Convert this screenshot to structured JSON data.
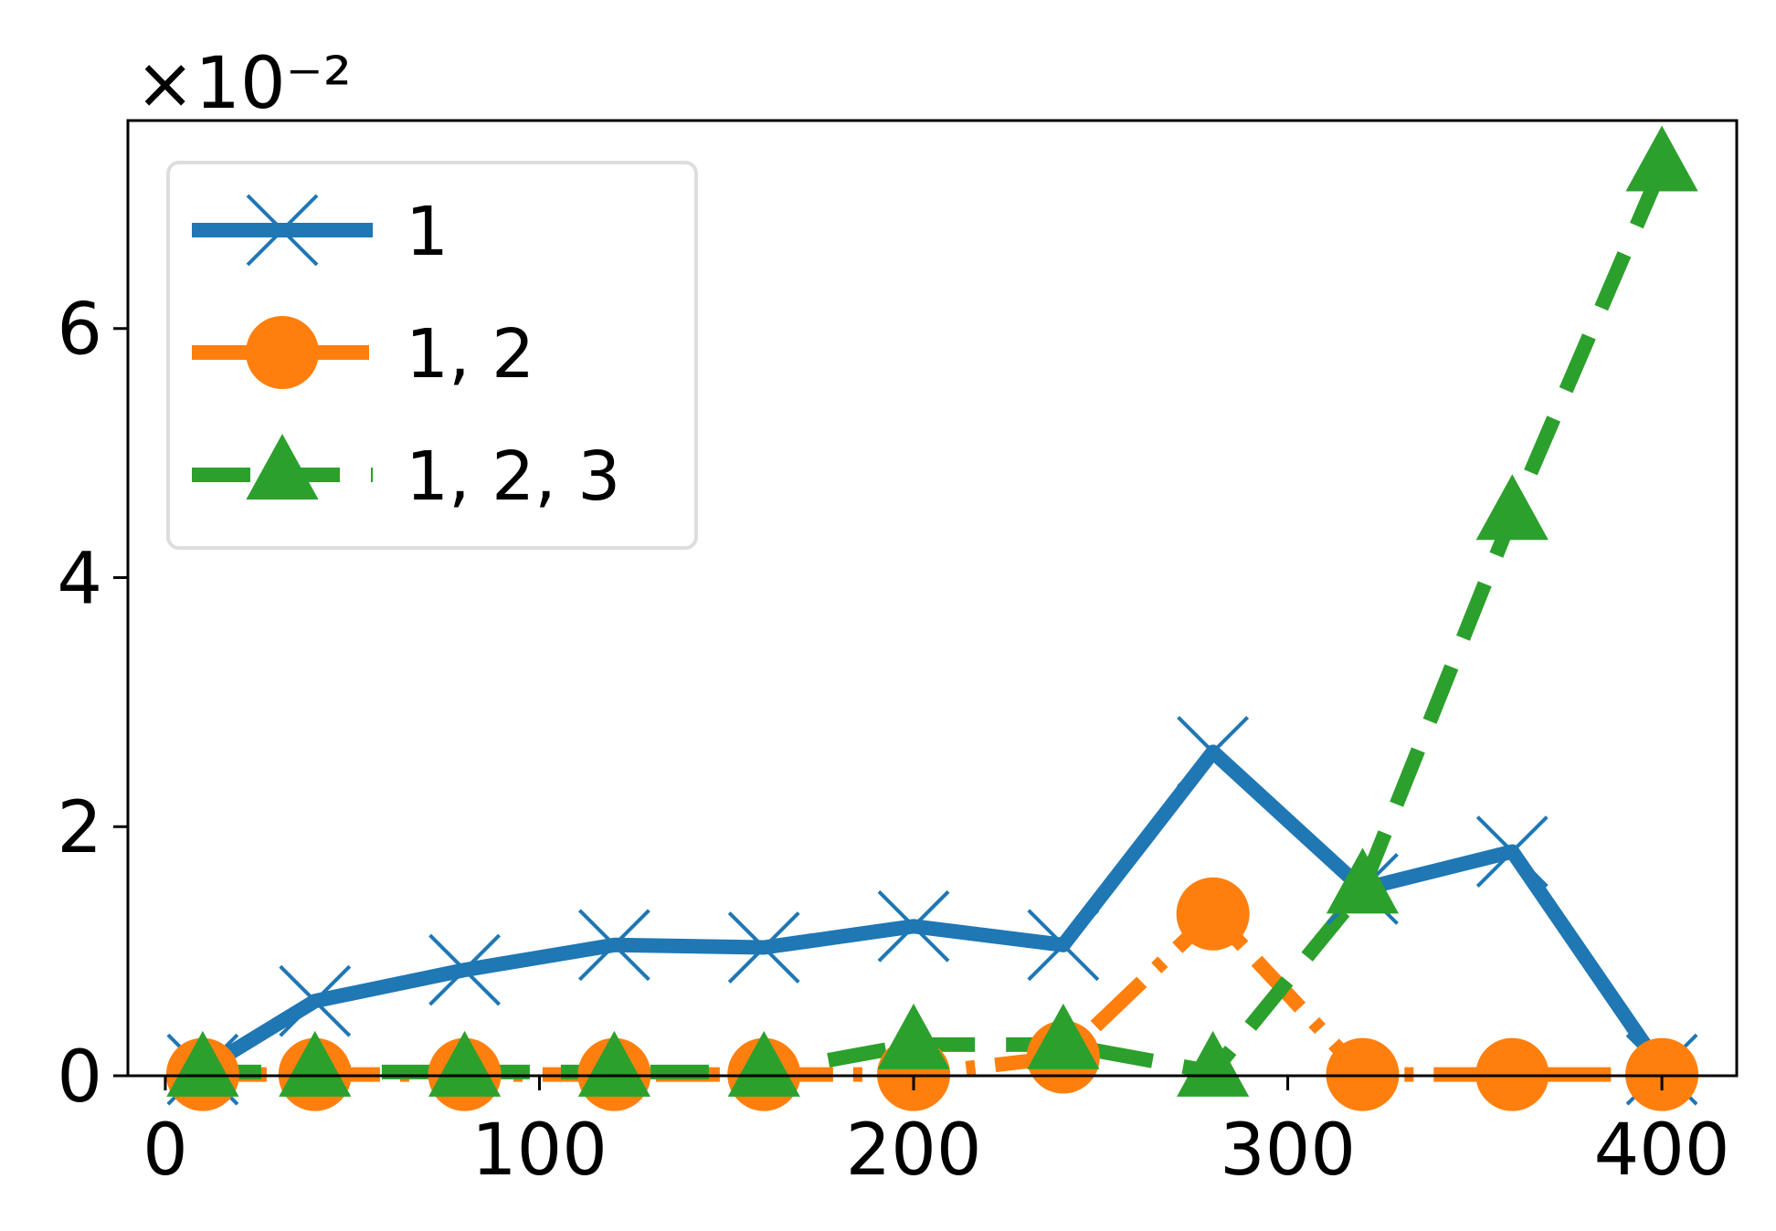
{
  "chart_data": {
    "type": "line",
    "title": "",
    "xlabel": "",
    "ylabel": "",
    "y_multiplier_label": "×10⁻²",
    "xlim": [
      -10,
      420
    ],
    "ylim": [
      0,
      0.0767
    ],
    "x_ticks": [
      0,
      100,
      200,
      300,
      400
    ],
    "y_ticks": [
      0,
      0.02,
      0.04,
      0.06
    ],
    "x_tick_labels": [
      "0",
      "100",
      "200",
      "300",
      "400"
    ],
    "y_tick_labels": [
      "0",
      "2",
      "4",
      "6"
    ],
    "grid": false,
    "legend_position": "top-left",
    "x": [
      10,
      40,
      80,
      120,
      160,
      200,
      240,
      280,
      320,
      360,
      400
    ],
    "series": [
      {
        "name": "1",
        "color": "#1f77b4",
        "marker": "x",
        "linestyle": "solid",
        "values": [
          0.0005,
          0.006,
          0.0085,
          0.0105,
          0.0103,
          0.012,
          0.0105,
          0.026,
          0.015,
          0.018,
          0.0005
        ]
      },
      {
        "name": "1, 2",
        "color": "#ff7f0e",
        "marker": "circle",
        "linestyle": "dashdot",
        "values": [
          0.0001,
          0.0001,
          0.0001,
          0.0001,
          0.0001,
          0.0001,
          0.0015,
          0.013,
          0.0001,
          0.0001,
          0.0001
        ]
      },
      {
        "name": "1, 2, 3",
        "color": "#2ca02c",
        "marker": "triangle",
        "linestyle": "dashed",
        "values": [
          0.0003,
          0.0003,
          0.0003,
          0.0003,
          0.0003,
          0.0025,
          0.0025,
          0.0003,
          0.015,
          0.045,
          0.073
        ]
      }
    ]
  }
}
